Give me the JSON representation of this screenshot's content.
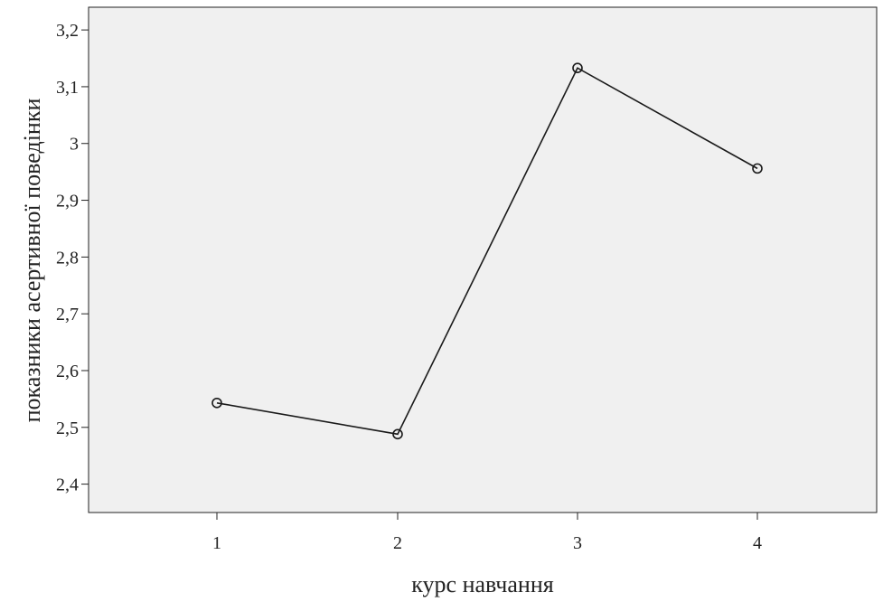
{
  "chart_data": {
    "type": "line",
    "title": "",
    "xlabel": "курс навчання",
    "ylabel": "показники асертивної поведінки",
    "x": [
      1,
      2,
      3,
      4
    ],
    "x_tick_labels": [
      "1",
      "2",
      "3",
      "4"
    ],
    "y_ticks": [
      2.4,
      2.5,
      2.6,
      2.7,
      2.8,
      2.9,
      3.0,
      3.1,
      3.2
    ],
    "y_tick_labels": [
      "2,4",
      "2,5",
      "2,6",
      "2,7",
      "2,8",
      "2,9",
      "3",
      "3,1",
      "3,2"
    ],
    "ylim": [
      2.35,
      3.24
    ],
    "series": [
      {
        "values": [
          2.543,
          2.488,
          3.133,
          2.956
        ]
      }
    ],
    "grid": false,
    "legend": "none",
    "colors": {
      "plot_background": "#f0f0f0",
      "line": "#1a1a1a",
      "marker_stroke": "#1a1a1a",
      "axis": "#222222"
    }
  }
}
